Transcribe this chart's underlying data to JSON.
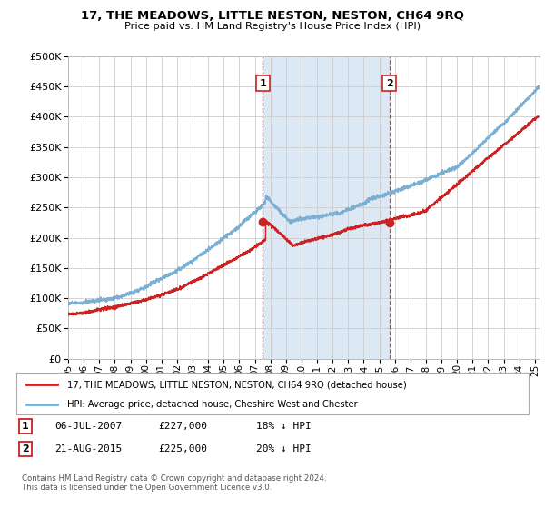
{
  "title": "17, THE MEADOWS, LITTLE NESTON, NESTON, CH64 9RQ",
  "subtitle": "Price paid vs. HM Land Registry's House Price Index (HPI)",
  "ylim": [
    0,
    500000
  ],
  "xlim_start": 1995.0,
  "xlim_end": 2025.3,
  "sale1_date": 2007.52,
  "sale1_price": 227000,
  "sale1_label": "1",
  "sale2_date": 2015.65,
  "sale2_price": 225000,
  "sale2_label": "2",
  "legend_line1": "17, THE MEADOWS, LITTLE NESTON, NESTON, CH64 9RQ (detached house)",
  "legend_line2": "HPI: Average price, detached house, Cheshire West and Chester",
  "footer": "Contains HM Land Registry data © Crown copyright and database right 2024.\nThis data is licensed under the Open Government Licence v3.0.",
  "red_color": "#cc2222",
  "blue_color": "#7bafd4",
  "shaded_color": "#dce9f5",
  "background_color": "#ffffff",
  "grid_color": "#cccccc"
}
